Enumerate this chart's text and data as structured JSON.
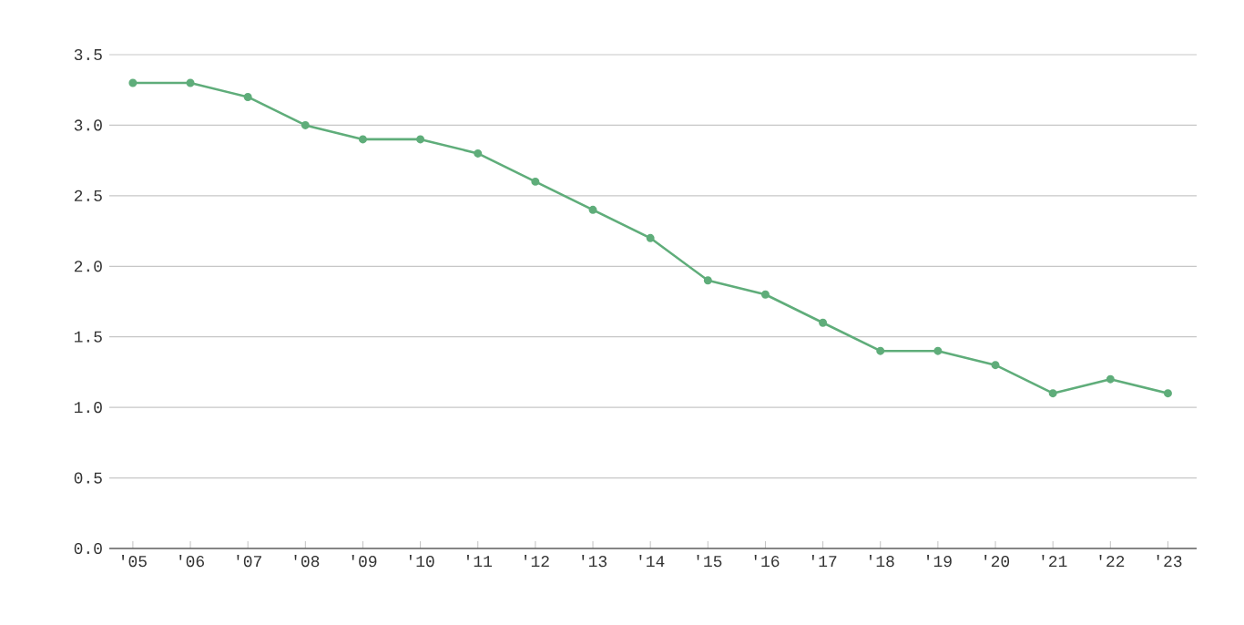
{
  "chart_data": {
    "type": "line",
    "categories": [
      "'05",
      "'06",
      "'07",
      "'08",
      "'09",
      "'10",
      "'11",
      "'12",
      "'13",
      "'14",
      "'15",
      "'16",
      "'17",
      "'18",
      "'19",
      "'20",
      "'21",
      "'22",
      "'23"
    ],
    "values": [
      3.3,
      3.3,
      3.2,
      3.0,
      2.9,
      2.9,
      2.8,
      2.6,
      2.4,
      2.2,
      1.9,
      1.8,
      1.6,
      1.4,
      1.4,
      1.3,
      1.1,
      1.2,
      1.1
    ],
    "color": "#5fad7a",
    "marker": "circle",
    "grid": "y",
    "ylim": [
      0,
      3.5
    ],
    "yticks": [
      {
        "value": 0,
        "label": "0.0"
      },
      {
        "value": 0.5,
        "label": "0.5"
      },
      {
        "value": 1,
        "label": "1.0"
      },
      {
        "value": 1.5,
        "label": "1.5"
      },
      {
        "value": 2,
        "label": "2.0"
      },
      {
        "value": 2.5,
        "label": "2.5"
      },
      {
        "value": 3,
        "label": "3.0"
      },
      {
        "value": 3.5,
        "label": "3.5"
      }
    ]
  }
}
